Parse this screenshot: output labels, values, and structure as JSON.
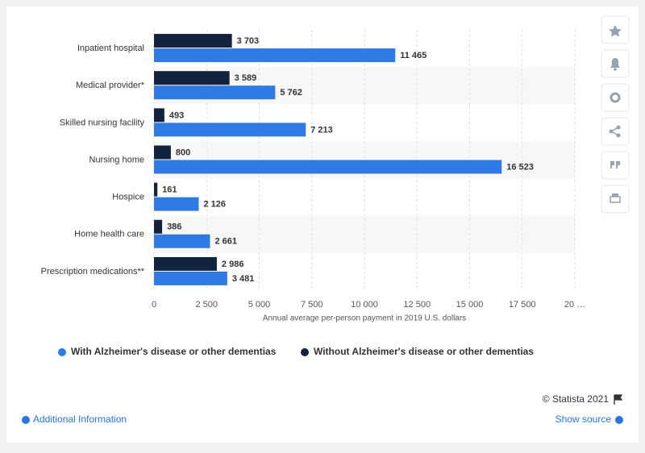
{
  "chart_data": {
    "type": "bar",
    "orientation": "horizontal",
    "x_label": "Annual average per-person payment in 2019 U.S. dollars",
    "categories": [
      "Inpatient hospital",
      "Medical provider*",
      "Skilled nursing facility",
      "Nursing home",
      "Hospice",
      "Home health care",
      "Prescription medications**"
    ],
    "series": [
      {
        "name": "With Alzheimer's disease or other dementias",
        "color": "#2f7ae5",
        "values": [
          11465,
          5762,
          7213,
          16523,
          2126,
          2661,
          3481
        ],
        "value_labels": [
          "11 465",
          "5 762",
          "7 213",
          "16 523",
          "2 126",
          "2 661",
          "3 481"
        ]
      },
      {
        "name": "Without Alzheimer's disease or other dementias",
        "color": "#13233d",
        "values": [
          3703,
          3589,
          493,
          800,
          161,
          386,
          2986
        ],
        "value_labels": [
          "3 703",
          "3 589",
          "493",
          "800",
          "161",
          "386",
          "2 986"
        ]
      }
    ],
    "xlim": [
      0,
      20000
    ],
    "xticks": [
      0,
      {
        "value": 2500,
        "label": "2 500"
      },
      {
        "value": 5000,
        "label": "5 000"
      },
      {
        "value": 7500,
        "label": "7 500"
      },
      {
        "value": 10000,
        "label": "10 000"
      },
      {
        "value": 12500,
        "label": "12 500"
      },
      {
        "value": 15000,
        "label": "15 000"
      },
      {
        "value": 17500,
        "label": "17 500"
      },
      {
        "value": 20000,
        "label": "20 …"
      }
    ],
    "grid": true
  },
  "footer": {
    "copyright": "© Statista 2021",
    "additional_info": "Additional Information",
    "show_source": "Show source"
  }
}
